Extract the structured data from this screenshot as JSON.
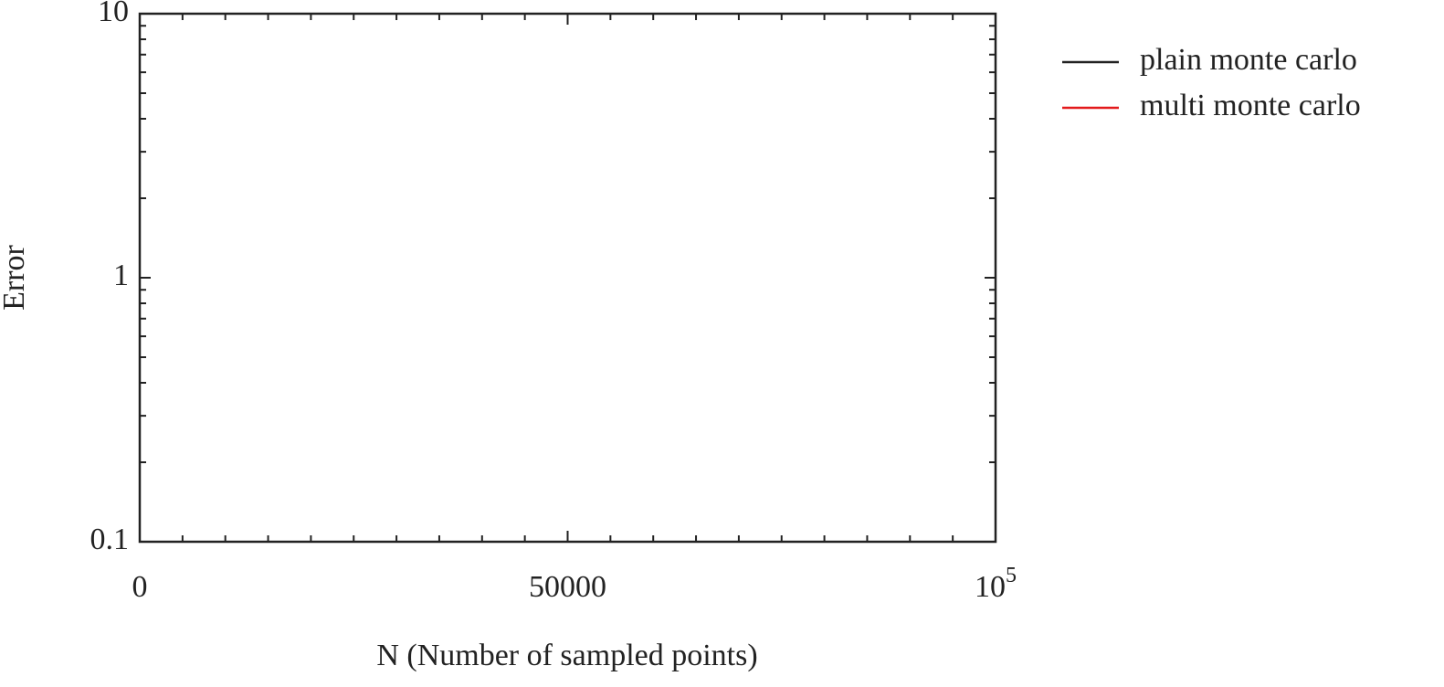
{
  "chart_data": {
    "type": "line",
    "x_label": "N (Number of sampled points)",
    "y_label": "Error",
    "xlim": [
      0,
      100000
    ],
    "xticks": [
      0,
      50000,
      {
        "value": 100000,
        "label": "10^5"
      }
    ],
    "ylim": [
      0.1,
      10
    ],
    "yticks": [
      0.1,
      1,
      10
    ],
    "y_log": true,
    "legend": "outside-right-top",
    "x": [],
    "series": [
      {
        "name": "plain monte carlo",
        "color": "#222222",
        "values": []
      },
      {
        "name": "multi monte carlo",
        "color": "#e31a1c",
        "values": []
      }
    ]
  }
}
